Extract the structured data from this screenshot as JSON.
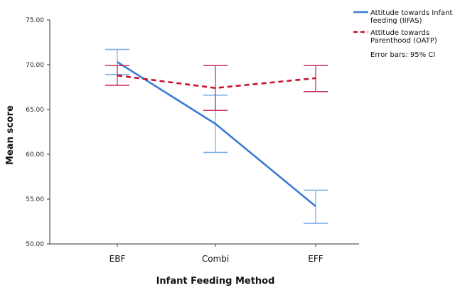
{
  "chart_data": {
    "type": "line",
    "xlabel": "Infant Feeding Method",
    "ylabel": "Mean score",
    "categories": [
      "EBF",
      "Combi",
      "EFF"
    ],
    "ylim": [
      50,
      75
    ],
    "yticks": [
      "50.00",
      "55.00",
      "60.00",
      "65.00",
      "70.00",
      "75.00"
    ],
    "grid": false,
    "legend_position": "top-right",
    "note": "Error bars: 95% CI",
    "series": [
      {
        "name": "Attitude towards Infant feeding (IIFAS)",
        "legend_lines": [
          "Attitude towards Infant",
          "feeding (IIFAS)"
        ],
        "color": "#3a7bd5",
        "style": "solid",
        "values": [
          70.3,
          63.4,
          54.2
        ],
        "ci_lower": [
          68.9,
          60.2,
          52.3
        ],
        "ci_upper": [
          71.7,
          66.6,
          56.0
        ]
      },
      {
        "name": "Attitude towards Parenthood (OATP)",
        "legend_lines": [
          "Attitude towards",
          "Parenthood (OATP)"
        ],
        "color": "#c8102e",
        "style": "dashed",
        "values": [
          68.8,
          67.4,
          68.5
        ],
        "ci_lower": [
          67.7,
          64.9,
          67.0
        ],
        "ci_upper": [
          69.9,
          69.9,
          69.9
        ]
      }
    ]
  }
}
